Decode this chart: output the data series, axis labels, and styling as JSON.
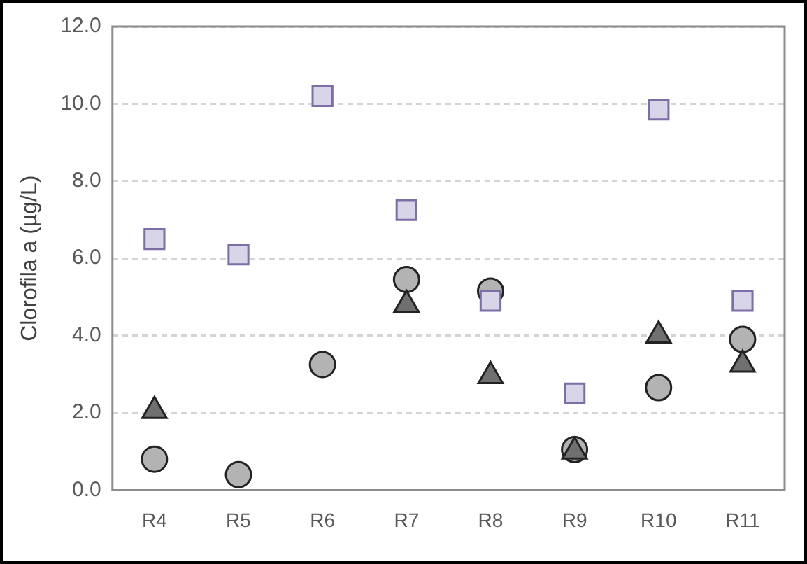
{
  "chart_data": {
    "type": "scatter",
    "ylabel": "Clorofila a (µg/L)",
    "categories": [
      "R4",
      "R5",
      "R6",
      "R7",
      "R8",
      "R9",
      "R10",
      "R11"
    ],
    "series": [
      {
        "color": "#d9d5e8",
        "marker": "square",
        "values": [
          6.5,
          6.1,
          10.2,
          7.25,
          4.9,
          2.5,
          9.85,
          4.9
        ]
      },
      {
        "color": "#707070",
        "marker": "triangle",
        "values": [
          2.05,
          null,
          null,
          4.8,
          2.95,
          1.0,
          4.0,
          3.25
        ]
      },
      {
        "color": "#b3b3b3",
        "marker": "circle",
        "values": [
          0.8,
          0.4,
          3.25,
          5.45,
          5.15,
          1.05,
          2.65,
          3.9
        ]
      }
    ],
    "ylim": [
      0,
      12
    ],
    "yticks": [
      {
        "value": 0,
        "label": "0.0"
      },
      {
        "value": 2,
        "label": "2.0"
      },
      {
        "value": 4,
        "label": "4.0"
      },
      {
        "value": 6,
        "label": "6.0"
      },
      {
        "value": 8,
        "label": "8.0"
      },
      {
        "value": 10,
        "label": "10.0"
      },
      {
        "value": 12,
        "label": "12.0"
      }
    ],
    "grid": "y",
    "legend": false
  }
}
